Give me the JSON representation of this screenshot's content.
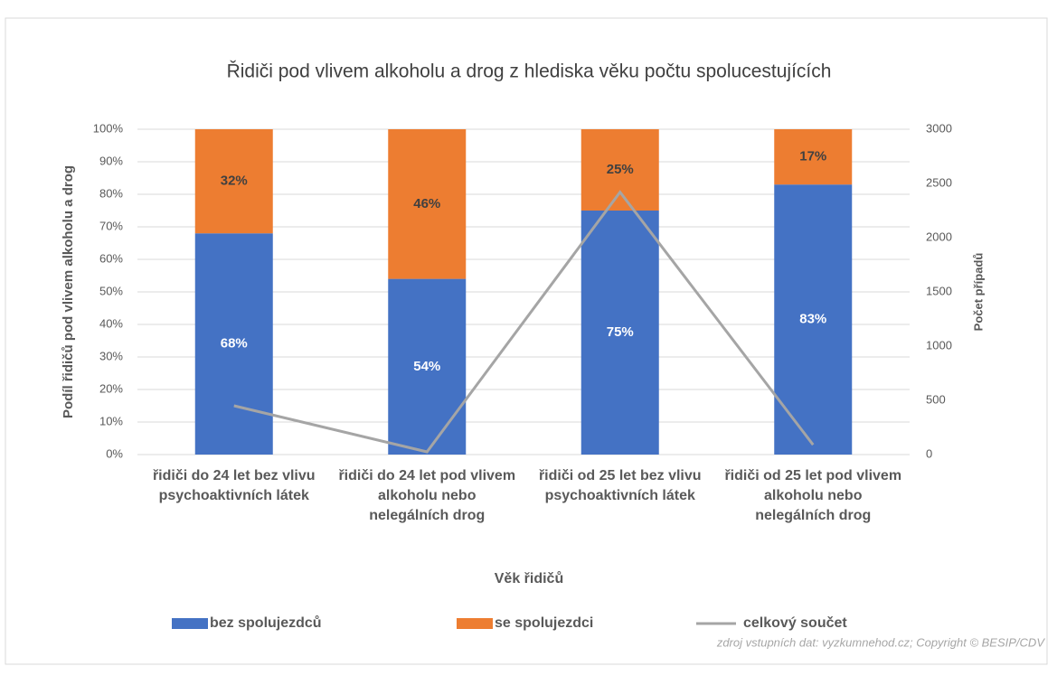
{
  "chart_data": {
    "type": "bar",
    "stacked": true,
    "title": "Řidiči pod vlivem alkoholu a drog z hlediska věku počtu spolucestujících",
    "x_label": "Věk řidičů",
    "y_label": "Podíl řidičů pod vlivem alkoholu a drog",
    "y2_label": "Počet případů",
    "categories": [
      "řidiči do 24 let bez vlivu psychoaktivních látek",
      "řidiči do 24 let pod vlivem alkoholu nebo nelegálních drog",
      "řidiči od 25 let bez vlivu psychoaktivních látek",
      "řidiči od 25 let pod vlivem alkoholu nebo nelegálních drog"
    ],
    "series": [
      {
        "name": "bez spolujezdců",
        "color": "#4472c4",
        "type": "bar",
        "values": [
          68,
          54,
          75,
          83
        ],
        "value_labels": [
          "68%",
          "54%",
          "75%",
          "83%"
        ]
      },
      {
        "name": "se spolujezdci",
        "color": "#ed7d31",
        "type": "bar",
        "values": [
          32,
          46,
          25,
          17
        ],
        "value_labels": [
          "32%",
          "46%",
          "25%",
          "17%"
        ]
      },
      {
        "name": "celkový součet",
        "color": "#a5a5a5",
        "type": "line",
        "axis": "y2",
        "values": [
          450,
          25,
          2420,
          90
        ]
      }
    ],
    "ylim": [
      0,
      100
    ],
    "yticks": [
      {
        "value": 0,
        "label": "0%"
      },
      {
        "value": 10,
        "label": "10%"
      },
      {
        "value": 20,
        "label": "20%"
      },
      {
        "value": 30,
        "label": "30%"
      },
      {
        "value": 40,
        "label": "40%"
      },
      {
        "value": 50,
        "label": "50%"
      },
      {
        "value": 60,
        "label": "60%"
      },
      {
        "value": 70,
        "label": "70%"
      },
      {
        "value": 80,
        "label": "80%"
      },
      {
        "value": 90,
        "label": "90%"
      },
      {
        "value": 100,
        "label": "100%"
      }
    ],
    "y2lim": [
      0,
      3000
    ],
    "y2ticks": [
      0,
      500,
      1000,
      1500,
      2000,
      2500,
      3000
    ],
    "grid": true,
    "legend": "bottom",
    "source": "zdroj vstupních dat: vyzkumnehod.cz; Copyright © BESIP/CDV"
  }
}
